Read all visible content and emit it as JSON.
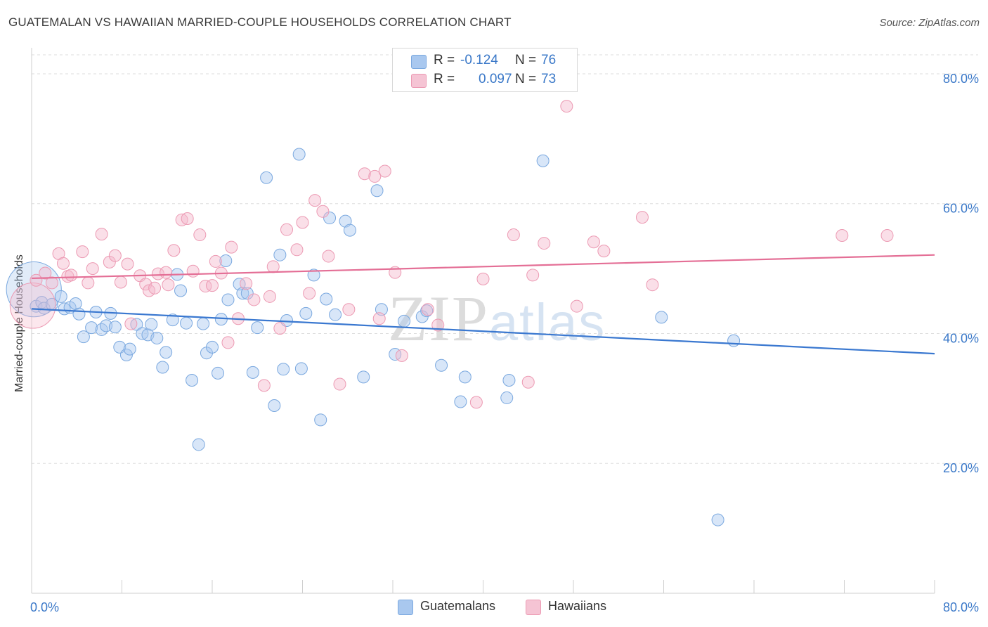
{
  "header": {
    "title": "GUATEMALAN VS HAWAIIAN MARRIED-COUPLE HOUSEHOLDS CORRELATION CHART",
    "source": "Source: ZipAtlas.com"
  },
  "legend_top": {
    "rows": [
      {
        "label": "R =",
        "r": "-0.124",
        "n_label": "N =",
        "n": "76"
      },
      {
        "label": "R =",
        "r": "0.097",
        "n_label": "N =",
        "n": "73"
      }
    ]
  },
  "legend_bottom": [
    {
      "label": "Guatemalans"
    },
    {
      "label": "Hawaiians"
    }
  ],
  "watermark": {
    "zip": "ZIP",
    "atlas": "atlas"
  },
  "colors": {
    "blue_fill": "#a9c8ef",
    "blue_stroke": "#7aa8df",
    "blue_line": "#3a78d0",
    "pink_fill": "#f5b9cc",
    "pink_stroke": "#ec9ab3",
    "pink_line": "#e46f96",
    "axis_text": "#3a78c8",
    "grid": "#dddddd"
  },
  "chart_data": {
    "type": "scatter",
    "title": "GUATEMALAN VS HAWAIIAN MARRIED-COUPLE HOUSEHOLDS CORRELATION CHART",
    "xlabel": "",
    "ylabel": "Married-couple Households",
    "xlim": [
      0,
      80
    ],
    "ylim": [
      0,
      84
    ],
    "x_tick_labels": [
      "0.0%",
      "80.0%"
    ],
    "y_ticks": [
      {
        "value": 20,
        "label": "20.0%"
      },
      {
        "value": 40,
        "label": "40.0%"
      },
      {
        "value": 60,
        "label": "60.0%"
      },
      {
        "value": 80,
        "label": "80.0%"
      }
    ],
    "series": [
      {
        "name": "Guatemalans",
        "color": "blue",
        "r": -0.124,
        "n": 76,
        "trend": [
          [
            0,
            43.8
          ],
          [
            80,
            36.9
          ]
        ],
        "points": [
          [
            0.2,
            46.8,
            4.6
          ],
          [
            0.4,
            44.2,
            1
          ],
          [
            0.9,
            44.8,
            1
          ],
          [
            1.1,
            43.9,
            1
          ],
          [
            1.8,
            44.5,
            1
          ],
          [
            2.6,
            45.7,
            1
          ],
          [
            2.9,
            43.8,
            1
          ],
          [
            3.4,
            44.0,
            1
          ],
          [
            3.9,
            44.6,
            1
          ],
          [
            4.2,
            43.0,
            1
          ],
          [
            4.6,
            39.5,
            1
          ],
          [
            5.3,
            40.9,
            1
          ],
          [
            5.7,
            43.3,
            1
          ],
          [
            6.2,
            40.6,
            1
          ],
          [
            6.6,
            41.2,
            1
          ],
          [
            7.0,
            43.1,
            1
          ],
          [
            7.4,
            41.0,
            1
          ],
          [
            7.8,
            37.9,
            1
          ],
          [
            8.4,
            36.7,
            1
          ],
          [
            8.7,
            37.6,
            1
          ],
          [
            9.3,
            41.4,
            1
          ],
          [
            9.8,
            40.0,
            1
          ],
          [
            10.3,
            39.8,
            1
          ],
          [
            10.6,
            41.4,
            1
          ],
          [
            11.1,
            39.3,
            1
          ],
          [
            11.6,
            34.8,
            1
          ],
          [
            11.9,
            37.1,
            1
          ],
          [
            12.5,
            42.1,
            1
          ],
          [
            12.9,
            49.1,
            1
          ],
          [
            13.2,
            46.6,
            1
          ],
          [
            13.7,
            41.6,
            1
          ],
          [
            14.2,
            32.8,
            1
          ],
          [
            14.8,
            22.9,
            1
          ],
          [
            15.2,
            41.5,
            1
          ],
          [
            15.5,
            37.0,
            1
          ],
          [
            16.0,
            37.9,
            1
          ],
          [
            16.5,
            33.9,
            1
          ],
          [
            16.8,
            42.2,
            1
          ],
          [
            17.2,
            51.2,
            1
          ],
          [
            17.4,
            45.2,
            1
          ],
          [
            18.4,
            47.6,
            1
          ],
          [
            18.7,
            46.2,
            1
          ],
          [
            19.1,
            46.2,
            1
          ],
          [
            19.6,
            34.0,
            1
          ],
          [
            20.0,
            40.9,
            1
          ],
          [
            20.8,
            64.0,
            1
          ],
          [
            21.5,
            28.9,
            1
          ],
          [
            22.0,
            52.1,
            1
          ],
          [
            22.3,
            34.5,
            1
          ],
          [
            22.6,
            42.0,
            1
          ],
          [
            23.7,
            67.6,
            1
          ],
          [
            23.9,
            34.6,
            1
          ],
          [
            24.3,
            43.1,
            1
          ],
          [
            25.0,
            49.0,
            1
          ],
          [
            25.6,
            26.7,
            1
          ],
          [
            26.1,
            45.3,
            1
          ],
          [
            26.4,
            57.8,
            1
          ],
          [
            26.9,
            42.9,
            1
          ],
          [
            27.8,
            57.3,
            1
          ],
          [
            28.2,
            55.9,
            1
          ],
          [
            29.4,
            33.3,
            1
          ],
          [
            30.6,
            62.0,
            1
          ],
          [
            31.0,
            43.7,
            1
          ],
          [
            32.2,
            36.8,
            1
          ],
          [
            33.0,
            41.9,
            1
          ],
          [
            34.6,
            42.6,
            1
          ],
          [
            35.0,
            43.5,
            1
          ],
          [
            36.3,
            35.1,
            1
          ],
          [
            38.0,
            29.5,
            1
          ],
          [
            38.4,
            33.3,
            1
          ],
          [
            42.1,
            30.1,
            1
          ],
          [
            42.3,
            32.8,
            1
          ],
          [
            45.3,
            66.6,
            1
          ],
          [
            55.8,
            42.5,
            1
          ],
          [
            60.8,
            11.3,
            1
          ],
          [
            62.2,
            38.9,
            1
          ]
        ]
      },
      {
        "name": "Hawaiians",
        "color": "pink",
        "r": 0.097,
        "n": 73,
        "trend": [
          [
            0,
            48.5
          ],
          [
            80,
            52.1
          ]
        ],
        "points": [
          [
            0.1,
            44.3,
            3.8
          ],
          [
            0.4,
            48.2,
            1
          ],
          [
            1.2,
            49.3,
            1
          ],
          [
            1.8,
            47.8,
            1
          ],
          [
            2.4,
            52.3,
            1
          ],
          [
            2.8,
            50.8,
            1
          ],
          [
            3.2,
            48.8,
            1
          ],
          [
            3.5,
            49.0,
            1
          ],
          [
            4.5,
            52.6,
            1
          ],
          [
            5.0,
            47.8,
            1
          ],
          [
            5.4,
            50.0,
            1
          ],
          [
            6.2,
            55.3,
            1
          ],
          [
            6.9,
            51.0,
            1
          ],
          [
            7.4,
            52.0,
            1
          ],
          [
            7.9,
            47.9,
            1
          ],
          [
            8.5,
            50.7,
            1
          ],
          [
            8.8,
            41.5,
            1
          ],
          [
            9.6,
            48.9,
            1
          ],
          [
            10.1,
            47.6,
            1
          ],
          [
            10.4,
            46.6,
            1
          ],
          [
            10.9,
            47.0,
            1
          ],
          [
            11.2,
            49.2,
            1
          ],
          [
            11.9,
            49.4,
            1
          ],
          [
            12.1,
            47.5,
            1
          ],
          [
            12.6,
            52.8,
            1
          ],
          [
            13.3,
            57.5,
            1
          ],
          [
            13.8,
            57.7,
            1
          ],
          [
            14.3,
            49.6,
            1
          ],
          [
            14.9,
            55.2,
            1
          ],
          [
            15.4,
            47.3,
            1
          ],
          [
            16.0,
            47.4,
            1
          ],
          [
            16.3,
            51.1,
            1
          ],
          [
            16.8,
            49.3,
            1
          ],
          [
            17.4,
            38.6,
            1
          ],
          [
            17.7,
            53.3,
            1
          ],
          [
            18.3,
            42.3,
            1
          ],
          [
            19.0,
            47.7,
            1
          ],
          [
            19.7,
            45.2,
            1
          ],
          [
            20.6,
            32.0,
            1
          ],
          [
            21.1,
            45.7,
            1
          ],
          [
            21.4,
            50.3,
            1
          ],
          [
            22.0,
            40.8,
            1
          ],
          [
            22.6,
            56.0,
            1
          ],
          [
            23.5,
            52.9,
            1
          ],
          [
            24.0,
            57.1,
            1
          ],
          [
            24.6,
            46.2,
            1
          ],
          [
            25.1,
            60.5,
            1
          ],
          [
            25.8,
            58.8,
            1
          ],
          [
            26.3,
            51.9,
            1
          ],
          [
            27.3,
            32.2,
            1
          ],
          [
            28.1,
            43.7,
            1
          ],
          [
            29.5,
            64.6,
            1
          ],
          [
            30.4,
            64.2,
            1
          ],
          [
            30.8,
            42.3,
            1
          ],
          [
            31.3,
            65.0,
            1
          ],
          [
            32.2,
            49.4,
            1
          ],
          [
            32.8,
            36.6,
            1
          ],
          [
            35.1,
            43.7,
            1
          ],
          [
            36.0,
            41.3,
            1
          ],
          [
            39.4,
            29.4,
            1
          ],
          [
            40.0,
            48.4,
            1
          ],
          [
            42.7,
            55.2,
            1
          ],
          [
            44.0,
            32.5,
            1
          ],
          [
            44.4,
            49.0,
            1
          ],
          [
            45.4,
            53.9,
            1
          ],
          [
            47.4,
            75.0,
            1
          ],
          [
            48.3,
            44.2,
            1
          ],
          [
            49.8,
            54.1,
            1
          ],
          [
            50.7,
            52.7,
            1
          ],
          [
            54.1,
            57.9,
            1
          ],
          [
            55.0,
            47.5,
            1
          ],
          [
            71.8,
            55.1,
            1
          ],
          [
            75.8,
            55.1,
            1
          ]
        ]
      }
    ]
  }
}
